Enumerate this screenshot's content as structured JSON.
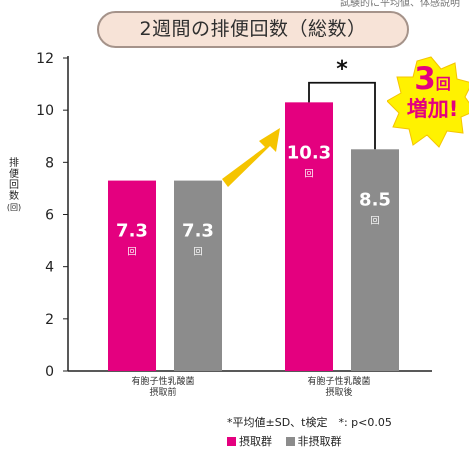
{
  "header": {
    "top_note": "試験的に平均値、体感説明",
    "title": "2週間の排便回数（総数）"
  },
  "chart_data": {
    "type": "bar",
    "ylabel_chars": [
      "排",
      "便",
      "回",
      "数",
      "(回)"
    ],
    "ylim": [
      0,
      12
    ],
    "yticks": [
      0,
      2,
      4,
      6,
      8,
      10,
      12
    ],
    "categories": [
      "有胞子性乳酸菌\n摂取前",
      "有胞子性乳酸菌\n摂取後"
    ],
    "series": [
      {
        "name": "摂取群",
        "color": "#e4007f",
        "values": [
          7.3,
          10.3
        ]
      },
      {
        "name": "非摂取群",
        "color": "#8c8c8c",
        "values": [
          7.3,
          8.5
        ]
      }
    ],
    "value_unit": "回",
    "significance": "*",
    "footnote": "*平均値±SD、t検定　*: p<0.05",
    "badge": {
      "number": "3",
      "unit": "回",
      "text": "増加!"
    }
  }
}
